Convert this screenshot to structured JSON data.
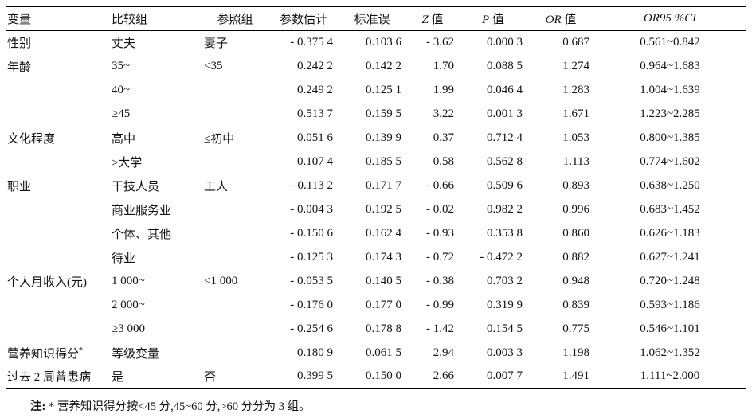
{
  "table": {
    "headers": [
      {
        "it": "",
        "text": "变量"
      },
      {
        "it": "",
        "text": "比较组"
      },
      {
        "it": "",
        "text": "参照组"
      },
      {
        "it": "",
        "text": "参数估计"
      },
      {
        "it": "",
        "text": "标准误"
      },
      {
        "it": "Z",
        "text": " 值"
      },
      {
        "it": "P",
        "text": " 值"
      },
      {
        "it": "OR",
        "text": " 值"
      },
      {
        "it": "OR95 %CI",
        "text": ""
      }
    ],
    "rows": [
      [
        "性别",
        "丈夫",
        "妻子",
        "- 0.375 4",
        "0.103 6",
        "- 3.62",
        "0.000 3",
        "0.687",
        "0.561~0.842"
      ],
      [
        "年龄",
        "35~",
        "<35",
        "0.242 2",
        "0.142 2",
        "1.70",
        "0.088 5",
        "1.274",
        "0.964~1.683"
      ],
      [
        "",
        "40~",
        "",
        "0.249 2",
        "0.125 1",
        "1.99",
        "0.046 4",
        "1.283",
        "1.004~1.639"
      ],
      [
        "",
        "≥45",
        "",
        "0.513 7",
        "0.159 5",
        "3.22",
        "0.001 3",
        "1.671",
        "1.223~2.285"
      ],
      [
        "文化程度",
        "高中",
        "≤初中",
        "0.051 6",
        "0.139 9",
        "0.37",
        "0.712 4",
        "1.053",
        "0.800~1.385"
      ],
      [
        "",
        "≥大学",
        "",
        "0.107 4",
        "0.185 5",
        "0.58",
        "0.562 8",
        "1.113",
        "0.774~1.602"
      ],
      [
        "职业",
        "干技人员",
        "工人",
        "- 0.113 2",
        "0.171 7",
        "- 0.66",
        "0.509 6",
        "0.893",
        "0.638~1.250"
      ],
      [
        "",
        "商业服务业",
        "",
        "- 0.004 3",
        "0.192 5",
        "- 0.02",
        "0.982 2",
        "0.996",
        "0.683~1.452"
      ],
      [
        "",
        "个体、其他",
        "",
        "- 0.150 6",
        "0.162 4",
        "- 0.93",
        "0.353 8",
        "0.860",
        "0.626~1.183"
      ],
      [
        "",
        "待业",
        "",
        "- 0.125 3",
        "0.174 3",
        "- 0.72",
        "- 0.472 2",
        "0.882",
        "0.627~1.241"
      ],
      [
        "个人月收入(元)",
        "1 000~",
        "<1 000",
        "- 0.053 5",
        "0.140 5",
        "- 0.38",
        "0.703 2",
        "0.948",
        "0.720~1.248"
      ],
      [
        "",
        "2 000~",
        "",
        "- 0.176 0",
        "0.177 0",
        "- 0.99",
        "0.319 9",
        "0.839",
        "0.593~1.186"
      ],
      [
        "",
        "≥3 000",
        "",
        "- 0.254 6",
        "0.178 8",
        "- 1.42",
        "0.154 5",
        "0.775",
        "0.546~1.101"
      ],
      [
        "营养知识得分*",
        "等级变量",
        "",
        "0.180 9",
        "0.061 5",
        "2.94",
        "0.003 3",
        "1.198",
        "1.062~1.352"
      ],
      [
        "过去 2 周曾患病",
        "是",
        "否",
        "0.399 5",
        "0.150 0",
        "2.66",
        "0.007 7",
        "1.491",
        "1.111~2.000"
      ]
    ]
  },
  "footnote": {
    "label": "注:",
    "text": " * 营养知识得分按<45 分,45~60 分,>60 分分为 3 组。"
  }
}
